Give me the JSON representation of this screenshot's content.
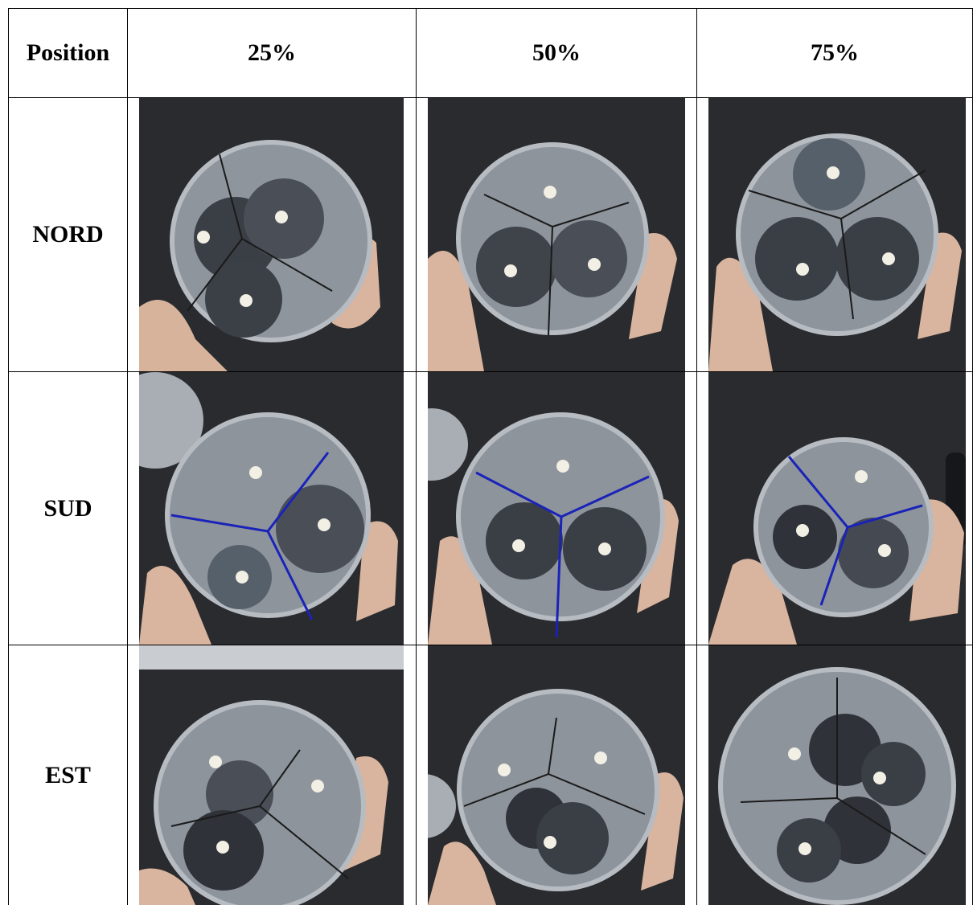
{
  "table": {
    "header": {
      "position_label": "Position",
      "col_25": "25%",
      "col_50": "50%",
      "col_75": "75%"
    },
    "rows": [
      {
        "label": "NORD",
        "line_color": "#1a1a1a"
      },
      {
        "label": "SUD",
        "line_color": "#1a23b8"
      },
      {
        "label": "EST",
        "line_color": "#1a1a1a"
      }
    ]
  }
}
